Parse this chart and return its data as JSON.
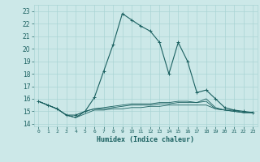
{
  "xlabel": "Humidex (Indice chaleur)",
  "xlim": [
    -0.5,
    23.5
  ],
  "ylim": [
    13.8,
    23.5
  ],
  "yticks": [
    14,
    15,
    16,
    17,
    18,
    19,
    20,
    21,
    22,
    23
  ],
  "xticks": [
    0,
    1,
    2,
    3,
    4,
    5,
    6,
    7,
    8,
    9,
    10,
    11,
    12,
    13,
    14,
    15,
    16,
    17,
    18,
    19,
    20,
    21,
    22,
    23
  ],
  "background_color": "#cce8e8",
  "grid_color": "#aad4d4",
  "line_color": "#1a6060",
  "series1_x": [
    0,
    1,
    2,
    3,
    4,
    5,
    6,
    7,
    8,
    9,
    10,
    11,
    12,
    13,
    14,
    15,
    16,
    17,
    18,
    19,
    20,
    21,
    22,
    23
  ],
  "series1_y": [
    15.8,
    15.5,
    15.2,
    14.7,
    14.7,
    15.0,
    16.1,
    18.2,
    20.3,
    22.8,
    22.3,
    21.8,
    21.4,
    20.5,
    18.0,
    20.5,
    19.0,
    16.5,
    16.7,
    16.0,
    15.3,
    15.1,
    15.0,
    14.9
  ],
  "series2_x": [
    0,
    1,
    2,
    3,
    4,
    5,
    6,
    7,
    8,
    9,
    10,
    11,
    12,
    13,
    14,
    15,
    16,
    17,
    18,
    19,
    20,
    21,
    22,
    23
  ],
  "series2_y": [
    15.8,
    15.5,
    15.2,
    14.7,
    14.5,
    15.0,
    15.2,
    15.3,
    15.4,
    15.5,
    15.6,
    15.6,
    15.6,
    15.7,
    15.7,
    15.8,
    15.8,
    15.7,
    16.0,
    15.3,
    15.1,
    15.1,
    14.9,
    14.9
  ],
  "series3_x": [
    0,
    1,
    2,
    3,
    4,
    5,
    6,
    7,
    8,
    9,
    10,
    11,
    12,
    13,
    14,
    15,
    16,
    17,
    18,
    19,
    20,
    21,
    22,
    23
  ],
  "series3_y": [
    15.8,
    15.5,
    15.2,
    14.7,
    14.5,
    15.0,
    15.2,
    15.2,
    15.3,
    15.4,
    15.5,
    15.5,
    15.5,
    15.6,
    15.6,
    15.7,
    15.7,
    15.7,
    15.8,
    15.2,
    15.1,
    15.0,
    14.9,
    14.9
  ],
  "series4_x": [
    0,
    1,
    2,
    3,
    4,
    5,
    6,
    7,
    8,
    9,
    10,
    11,
    12,
    13,
    14,
    15,
    16,
    17,
    18,
    19,
    20,
    21,
    22,
    23
  ],
  "series4_y": [
    15.8,
    15.5,
    15.2,
    14.7,
    14.5,
    14.8,
    15.1,
    15.1,
    15.2,
    15.2,
    15.3,
    15.3,
    15.4,
    15.4,
    15.5,
    15.5,
    15.5,
    15.5,
    15.5,
    15.2,
    15.1,
    15.0,
    14.9,
    14.9
  ]
}
